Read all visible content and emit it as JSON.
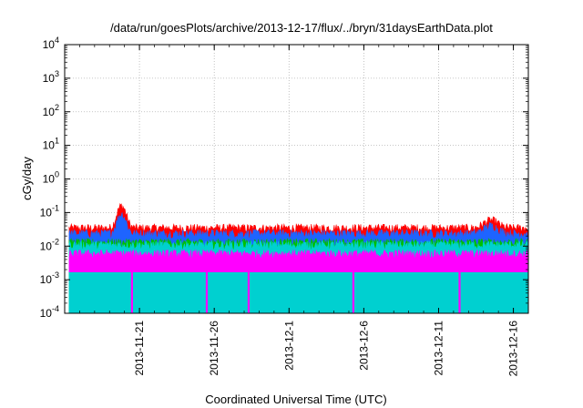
{
  "chart_data": {
    "type": "area",
    "title": "/data/run/goesPlots/archive/2013-12-17/flux/../bryn/31daysEarthData.plot",
    "xlabel": "Coordinated Universal Time (UTC)",
    "ylabel": "cGy/day",
    "y_scale": "log",
    "ylim": [
      0.0001,
      10000
    ],
    "y_ticks": [
      {
        "base": "10",
        "exp": "-4",
        "value": 0.0001
      },
      {
        "base": "10",
        "exp": "-3",
        "value": 0.001
      },
      {
        "base": "10",
        "exp": "-2",
        "value": 0.01
      },
      {
        "base": "10",
        "exp": "-1",
        "value": 0.1
      },
      {
        "base": "10",
        "exp": "0",
        "value": 1
      },
      {
        "base": "10",
        "exp": "1",
        "value": 10
      },
      {
        "base": "10",
        "exp": "2",
        "value": 100
      },
      {
        "base": "10",
        "exp": "3",
        "value": 1000
      },
      {
        "base": "10",
        "exp": "4",
        "value": 10000
      }
    ],
    "xlim": [
      "2013-11-16",
      "2013-12-17"
    ],
    "x_ticks": [
      "2013-11-21",
      "2013-11-26",
      "2013-12-1",
      "2013-12-6",
      "2013-12-11",
      "2013-12-16"
    ],
    "grid": true,
    "legend": "none",
    "series": [
      {
        "color": "#ff0000",
        "typical": 0.035,
        "peak": {
          "x": "2013-11-19.8",
          "y": 0.16
        }
      },
      {
        "color": "#1e64ff",
        "typical": 0.024,
        "peak": {
          "x": "2013-11-19.8",
          "y": 0.09
        }
      },
      {
        "color": "#00c000",
        "typical": 0.013
      },
      {
        "color": "#00d0d0",
        "typical": 0.011
      },
      {
        "color": "#ff00ff",
        "typical": 0.006,
        "floor": 0.002,
        "dropouts": [
          "2013-11-20.5",
          "2013-11-25.5",
          "2013-11-28.3",
          "2013-12-5.3",
          "2013-12-12.4"
        ]
      }
    ]
  }
}
